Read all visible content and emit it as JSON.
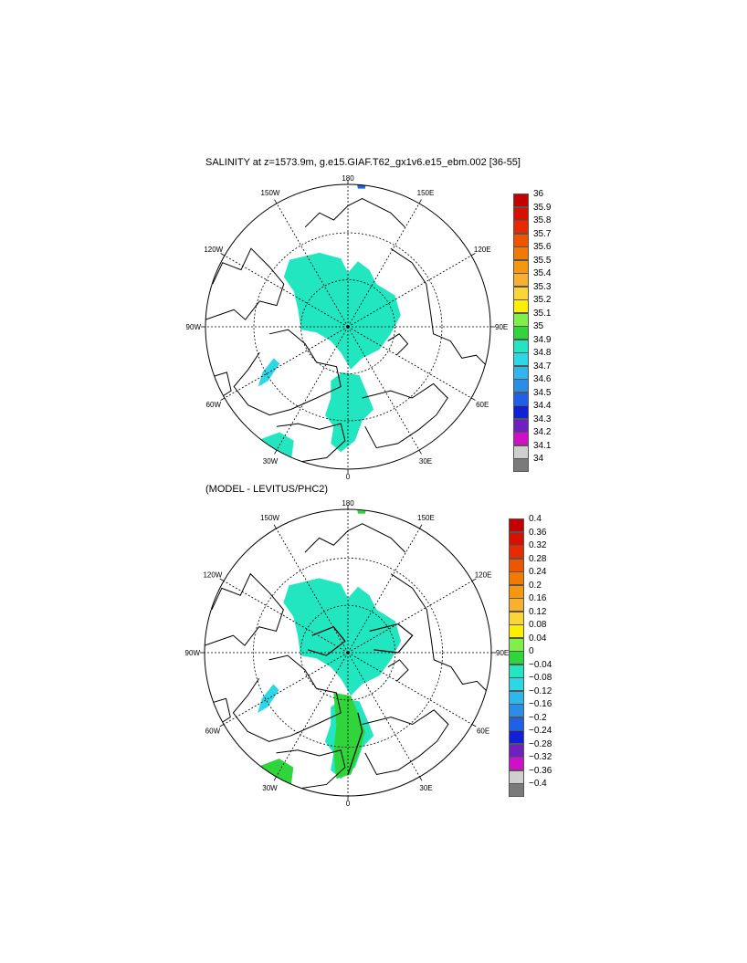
{
  "panel1": {
    "title": "SALINITY at z=1573.9m, g.e15.GIAF.T62_gx1v6.e15_ebm.002 [36-55]",
    "colorbar_labels": [
      "36",
      "35.9",
      "35.8",
      "35.7",
      "35.6",
      "35.5",
      "35.4",
      "35.3",
      "35.2",
      "35.1",
      "35",
      "34.9",
      "34.8",
      "34.7",
      "34.6",
      "34.5",
      "34.4",
      "34.3",
      "34.2",
      "34.1",
      "34"
    ],
    "colors": [
      "#c40000",
      "#d81000",
      "#e82a00",
      "#ee5500",
      "#f27a00",
      "#f5980d",
      "#f8b030",
      "#fbd43a",
      "#fcf000",
      "#7ff04a",
      "#2fd53a",
      "#22e6c0",
      "#2cd8e6",
      "#2fb6ec",
      "#2a8ee8",
      "#1f60e8",
      "#1020d8",
      "#7020c0",
      "#d010c8",
      "#cfcfcf",
      "#7a7a7a"
    ]
  },
  "panel2": {
    "title": "(MODEL - LEVITUS/PHC2)",
    "colorbar_labels": [
      "0.4",
      "0.36",
      "0.32",
      "0.28",
      "0.24",
      "0.2",
      "0.16",
      "0.12",
      "0.08",
      "0.04",
      "0",
      "−0.04",
      "−0.08",
      "−0.12",
      "−0.16",
      "−0.2",
      "−0.24",
      "−0.28",
      "−0.32",
      "−0.36",
      "−0.4"
    ],
    "colors": [
      "#c40000",
      "#d81000",
      "#e82a00",
      "#ee5500",
      "#f27a00",
      "#f5980d",
      "#f8b030",
      "#fbd43a",
      "#fcf000",
      "#7ff04a",
      "#2fd53a",
      "#22e6c0",
      "#2cd8e6",
      "#2fb6ec",
      "#2a8ee8",
      "#1f60e8",
      "#1020d8",
      "#7020c0",
      "#d010c8",
      "#cfcfcf",
      "#7a7a7a"
    ]
  },
  "longitude_labels": [
    "180",
    "150E",
    "120E",
    "90E",
    "60E",
    "30E",
    "0",
    "30W",
    "60W",
    "90W",
    "120W",
    "150W"
  ],
  "fill_colors": {
    "arctic": "#22e6c0",
    "nordic": "#22e6c0",
    "nordic_diff": "#2fd53a",
    "labrador": "#2fd53a",
    "labrador_diff": "#fbd43a",
    "baffin": "#2cd8e6",
    "atlantic": "#22e6c0",
    "atlantic_diff": "#2fd53a",
    "top_small": "#1f60e8",
    "top_small_diff": "#2fd53a",
    "contour": "#000000"
  }
}
